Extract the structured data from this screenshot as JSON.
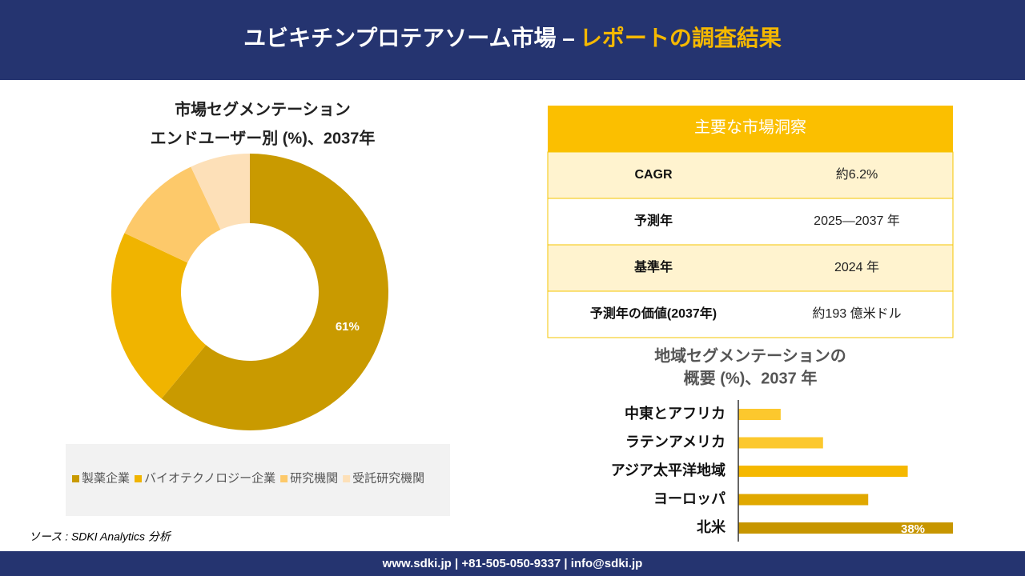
{
  "header": {
    "title": "ユビキチンプロテアソーム市場 –",
    "highlight": "レポートの調査結果"
  },
  "chart_data": [
    {
      "type": "donut",
      "title": [
        "市場セグメンテーション",
        "エンドユーザー別 (%)、2037年"
      ],
      "categories": [
        "製薬企業",
        "バイオテクノロジー企業",
        "研究機関",
        "受託研究機関"
      ],
      "values": [
        61,
        21,
        11,
        7
      ],
      "value_labels": [
        "61%",
        null,
        null,
        null
      ],
      "colors": [
        "#c99a00",
        "#f0b400",
        "#fdc96a",
        "#fde0b8"
      ]
    },
    {
      "type": "hbar",
      "title": [
        "地域セグメンテーションの",
        "概要 (%)、2037 年"
      ],
      "categories": [
        "中東とアフリカ",
        "ラテンアメリカ",
        "アジア太平洋地域",
        "ヨーロッパ",
        "北米"
      ],
      "values": [
        7.5,
        15,
        30,
        23,
        38
      ],
      "value_labels": [
        null,
        null,
        null,
        null,
        "38%"
      ],
      "colors": [
        "#fcc82d",
        "#fcc82d",
        "#f5b800",
        "#e0a800",
        "#c79600"
      ],
      "xlim": [
        0,
        38
      ]
    }
  ],
  "table": {
    "title": "主要な市場洞察",
    "rows": [
      [
        "CAGR",
        "約6.2%"
      ],
      [
        "予測年",
        "2025—2037 年"
      ],
      [
        "基準年",
        "2024 年"
      ],
      [
        "予測年の価値(2037年)",
        "約193 億米ドル"
      ]
    ]
  },
  "source": "ソース : SDKI Analytics 分析",
  "footer": "www.sdki.jp | +81-505-050-9337 | info@sdki.jp"
}
